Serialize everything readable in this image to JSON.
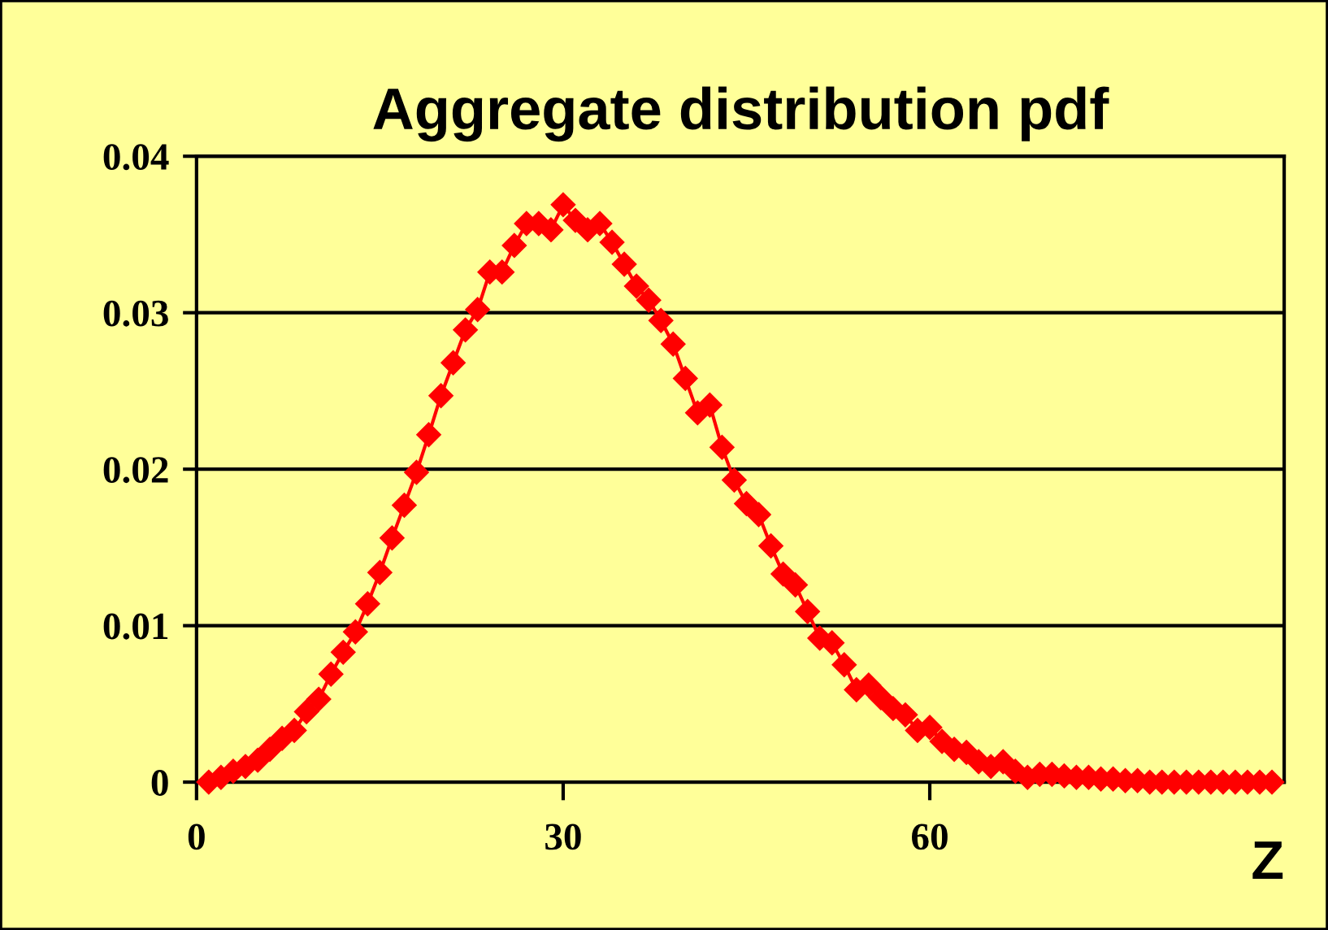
{
  "chart_data": {
    "type": "line",
    "title": "Aggregate distribution pdf",
    "xlabel": "Z",
    "x": [
      1,
      2,
      3,
      4,
      5,
      6,
      7,
      8,
      9,
      10,
      11,
      12,
      13,
      14,
      15,
      16,
      17,
      18,
      19,
      20,
      21,
      22,
      23,
      24,
      25,
      26,
      27,
      28,
      29,
      30,
      31,
      32,
      33,
      34,
      35,
      36,
      37,
      38,
      39,
      40,
      41,
      42,
      43,
      44,
      45,
      46,
      47,
      48,
      49,
      50,
      51,
      52,
      53,
      54,
      55,
      56,
      57,
      58,
      59,
      60,
      61,
      62,
      63,
      64,
      65,
      66,
      67,
      68,
      69,
      70,
      71,
      72,
      73,
      74,
      75,
      76,
      77,
      78,
      79,
      80,
      81,
      82,
      83,
      84,
      85,
      86,
      87,
      88
    ],
    "series": [
      {
        "color": "#ff0000",
        "values": [
          0.0,
          0.0003,
          0.0007,
          0.001,
          0.0014,
          0.0021,
          0.0028,
          0.0033,
          0.0045,
          0.0053,
          0.0069,
          0.0083,
          0.0096,
          0.0114,
          0.0134,
          0.0156,
          0.0177,
          0.0198,
          0.0222,
          0.0247,
          0.0268,
          0.0289,
          0.0302,
          0.0326,
          0.0326,
          0.0343,
          0.0357,
          0.0357,
          0.0353,
          0.0369,
          0.0359,
          0.0353,
          0.0357,
          0.0345,
          0.0331,
          0.0317,
          0.0308,
          0.0295,
          0.028,
          0.0258,
          0.0236,
          0.0241,
          0.0214,
          0.0193,
          0.0178,
          0.0171,
          0.0151,
          0.0133,
          0.0126,
          0.0109,
          0.0092,
          0.0089,
          0.0075,
          0.0059,
          0.0062,
          0.0054,
          0.0047,
          0.0043,
          0.0033,
          0.0035,
          0.0026,
          0.0021,
          0.0019,
          0.0013,
          0.001,
          0.0013,
          0.0007,
          0.0003,
          0.0005,
          0.0005,
          0.0004,
          0.0003,
          0.0003,
          0.0002,
          0.0002,
          0.0001,
          0.0001,
          0,
          0,
          0,
          0,
          0,
          0,
          0,
          0,
          0,
          0,
          0
        ]
      }
    ],
    "xlim": [
      0,
      89
    ],
    "xticks": [
      0,
      30,
      60
    ],
    "ylim": [
      0,
      0.04
    ],
    "yticks": [
      {
        "value": 0,
        "label": "0"
      },
      {
        "value": 0.01,
        "label": "0.01"
      },
      {
        "value": 0.02,
        "label": "0.02"
      },
      {
        "value": 0.03,
        "label": "0.03"
      },
      {
        "value": 0.04,
        "label": "0.04"
      }
    ],
    "grid": "y",
    "marker": "diamond",
    "line_style": "solid",
    "legend": false
  }
}
